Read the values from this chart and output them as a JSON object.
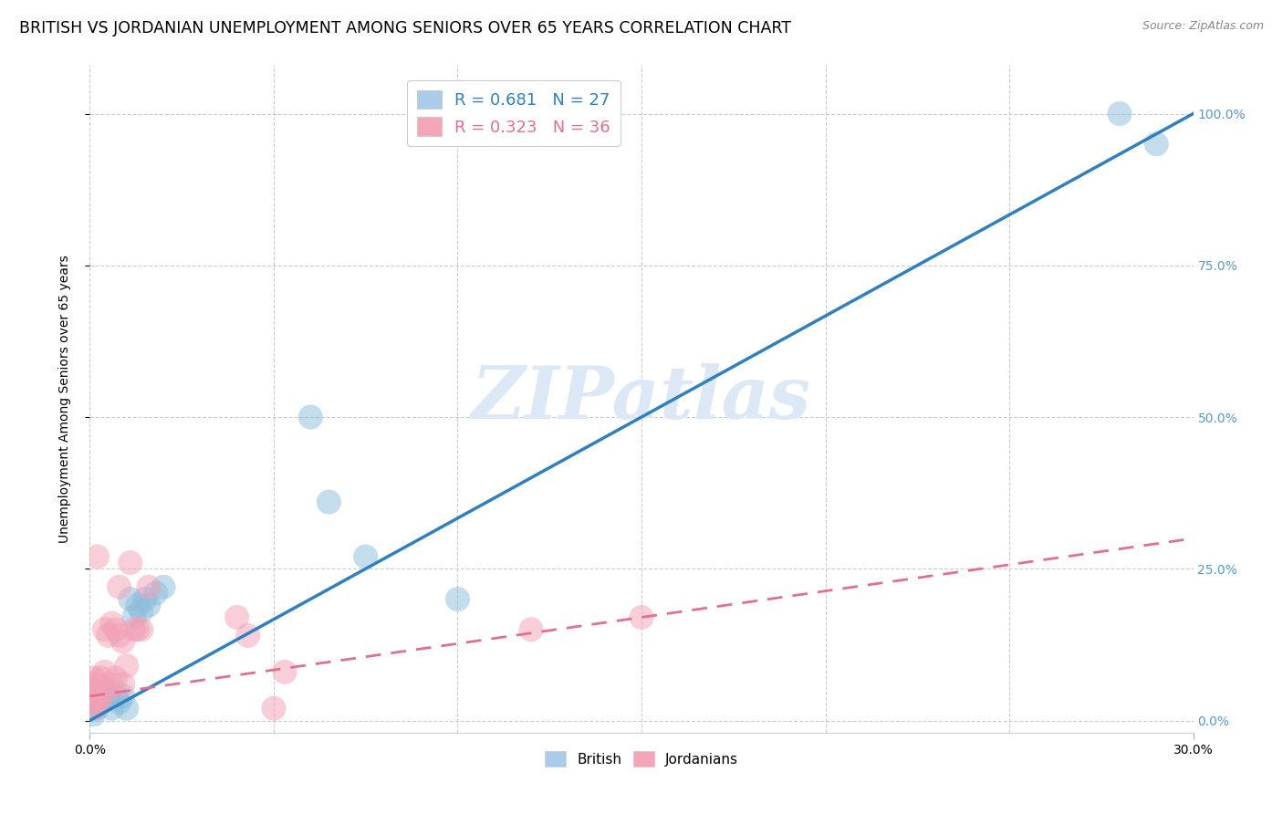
{
  "title": "BRITISH VS JORDANIAN UNEMPLOYMENT AMONG SENIORS OVER 65 YEARS CORRELATION CHART",
  "source": "Source: ZipAtlas.com",
  "ylabel": "Unemployment Among Seniors over 65 years",
  "xlim": [
    0.0,
    0.3
  ],
  "ylim": [
    -0.02,
    1.08
  ],
  "british_R": 0.681,
  "british_N": 27,
  "jordanian_R": 0.323,
  "jordanian_N": 36,
  "british_color": "#8bbcdb",
  "jordanian_color": "#f2a0b5",
  "british_line_color": "#3080c0",
  "jordanian_line_color": "#e07090",
  "legend_box_british": "#aacce8",
  "legend_box_jordanian": "#f4a6b8",
  "watermark_color": "#dce8f5",
  "grid_color": "#cccccc",
  "background_color": "#ffffff",
  "title_fontsize": 12.5,
  "axis_label_fontsize": 10,
  "tick_fontsize": 10,
  "right_tick_color": "#5599cc",
  "brit_line_x": [
    0.0,
    0.3
  ],
  "brit_line_y": [
    0.0,
    1.0
  ],
  "jord_line_x": [
    0.0,
    0.3
  ],
  "jord_line_y": [
    0.04,
    0.3
  ],
  "british_points_x": [
    0.001,
    0.001,
    0.001,
    0.002,
    0.002,
    0.003,
    0.004,
    0.005,
    0.006,
    0.007,
    0.008,
    0.009,
    0.01,
    0.011,
    0.012,
    0.013,
    0.014,
    0.015,
    0.016,
    0.018,
    0.02,
    0.06,
    0.065,
    0.075,
    0.1,
    0.28,
    0.29
  ],
  "british_points_y": [
    0.01,
    0.02,
    0.03,
    0.02,
    0.04,
    0.03,
    0.05,
    0.04,
    0.02,
    0.04,
    0.03,
    0.04,
    0.02,
    0.2,
    0.17,
    0.19,
    0.18,
    0.2,
    0.19,
    0.21,
    0.22,
    0.5,
    0.36,
    0.27,
    0.2,
    1.0,
    0.95
  ],
  "jordanian_points_x": [
    0.001,
    0.001,
    0.001,
    0.001,
    0.001,
    0.001,
    0.002,
    0.002,
    0.002,
    0.002,
    0.003,
    0.003,
    0.004,
    0.004,
    0.005,
    0.005,
    0.006,
    0.006,
    0.007,
    0.007,
    0.008,
    0.008,
    0.009,
    0.009,
    0.01,
    0.011,
    0.012,
    0.013,
    0.014,
    0.016,
    0.04,
    0.043,
    0.05,
    0.053,
    0.12,
    0.15
  ],
  "jordanian_points_y": [
    0.02,
    0.03,
    0.04,
    0.05,
    0.06,
    0.07,
    0.03,
    0.04,
    0.06,
    0.27,
    0.04,
    0.07,
    0.08,
    0.15,
    0.05,
    0.14,
    0.06,
    0.16,
    0.07,
    0.15,
    0.14,
    0.22,
    0.06,
    0.13,
    0.09,
    0.26,
    0.15,
    0.15,
    0.15,
    0.22,
    0.17,
    0.14,
    0.02,
    0.08,
    0.15,
    0.17
  ]
}
